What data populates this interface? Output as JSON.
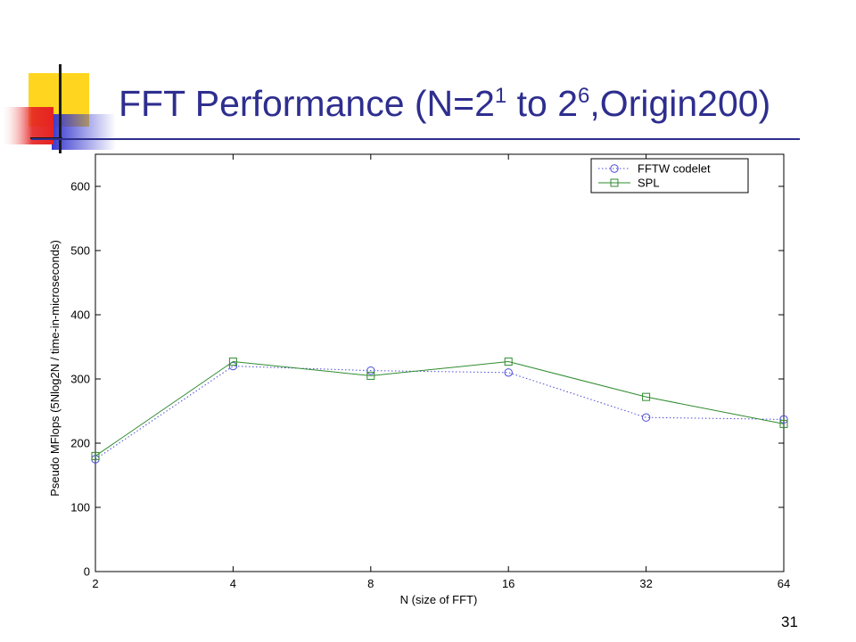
{
  "slide": {
    "title_main": "FFT Performance (N=2",
    "title_exp1": "1",
    "title_mid": " to 2",
    "title_exp2": "6",
    "title_end": ",Origin200)",
    "page_number": "31"
  },
  "colors": {
    "title": "#2e2e8f",
    "fftw_codelet": "#4a4ad8",
    "spl": "#2e8b2e",
    "logo_yellow": "#ffd51f",
    "logo_red": "#e52222",
    "logo_blue": "#3838d0"
  },
  "chart_data": {
    "type": "line",
    "categories": [
      "2",
      "4",
      "8",
      "16",
      "32",
      "64"
    ],
    "xlabel": "N (size of FFT)",
    "ylabel": "Pseudo MFlops (5Nlog2N / time-in-microseconds)",
    "ylim": [
      0,
      650
    ],
    "yticks": [
      0,
      100,
      200,
      300,
      400,
      500,
      600
    ],
    "x_scale": "log2",
    "grid": false,
    "legend_position": "top-right",
    "series": [
      {
        "name": "FFTW codelet",
        "values": [
          175,
          320,
          313,
          310,
          240,
          237
        ],
        "line": "dotted",
        "marker": "circle",
        "color": "#4a4ad8"
      },
      {
        "name": "SPL",
        "values": [
          180,
          327,
          305,
          327,
          272,
          230
        ],
        "line": "solid",
        "marker": "square",
        "color": "#2e8b2e"
      }
    ]
  }
}
